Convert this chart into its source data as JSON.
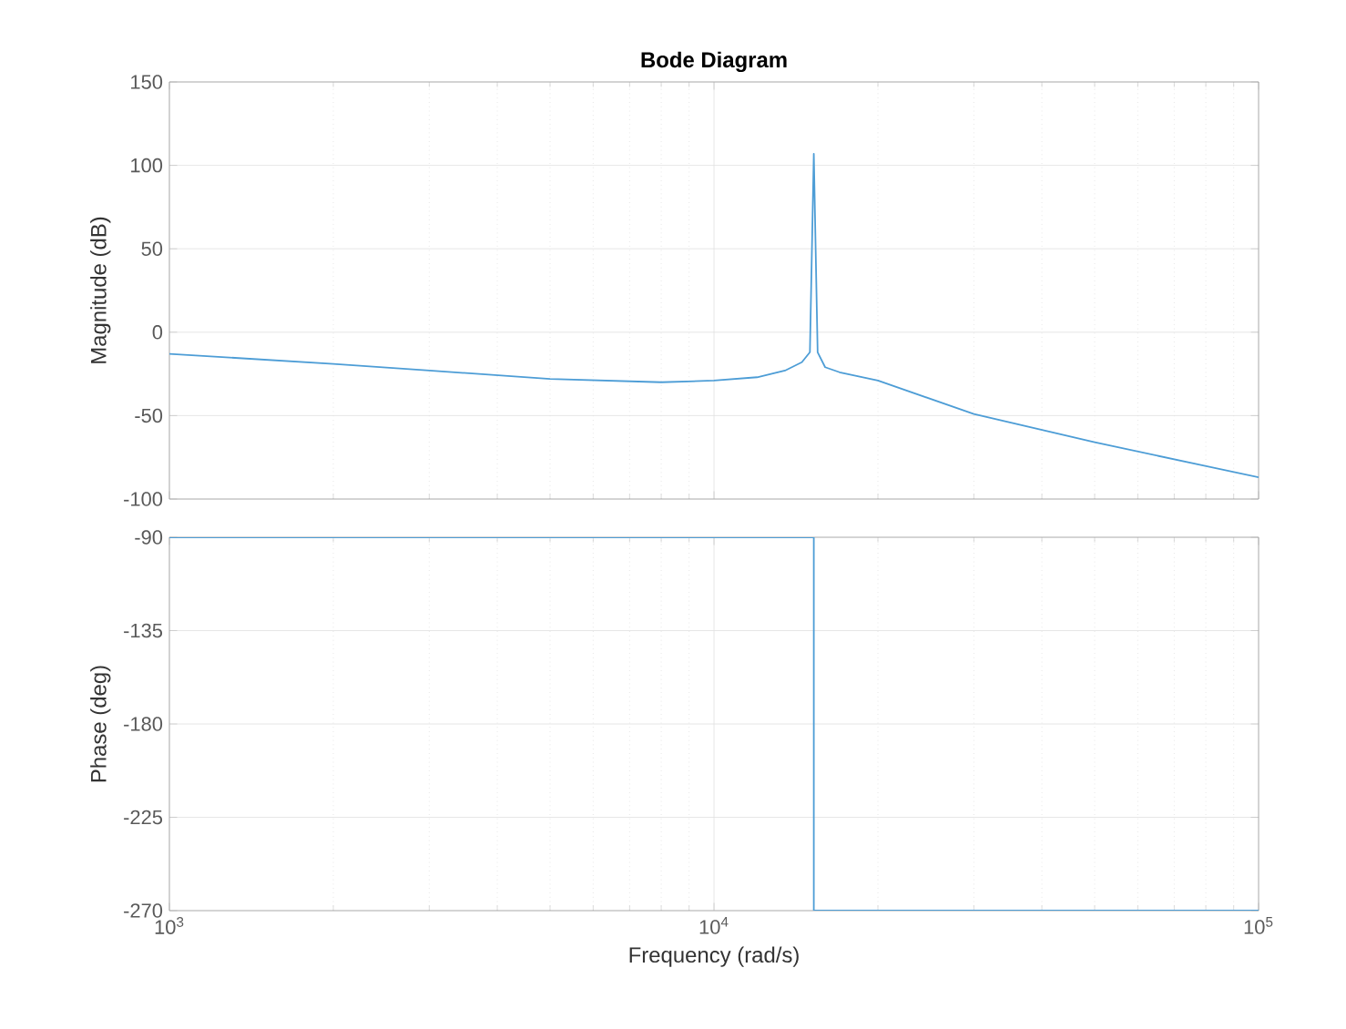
{
  "chart_data": [
    {
      "type": "line",
      "title": "Bode Diagram",
      "ylabel": "Magnitude (dB)",
      "log": "x",
      "grid": true,
      "tick_labels": "y",
      "color": "#4d9dd6",
      "x": [
        1000,
        2000,
        3000,
        5000,
        8000,
        10000,
        12000,
        13500,
        14500,
        15000,
        15250,
        15500,
        16000,
        17000,
        20000,
        30000,
        50000,
        100000
      ],
      "values": [
        -13,
        -19,
        -23,
        -28,
        -30,
        -29,
        -27,
        -23,
        -18,
        -12,
        107,
        -12,
        -21,
        -24,
        -29,
        -49,
        -66,
        -87
      ],
      "xlim": [
        1000,
        100000
      ],
      "ylim": [
        -100,
        150
      ],
      "xticks": [
        {
          "value": 1000,
          "label": null
        },
        {
          "value": 10000,
          "label": null
        },
        {
          "value": 100000,
          "label": null
        }
      ],
      "yticks": [
        -100,
        -50,
        0,
        50,
        100,
        150
      ]
    },
    {
      "type": "line",
      "xlabel": "Frequency  (rad/s)",
      "ylabel": "Phase (deg)",
      "log": "x",
      "grid": true,
      "color": "#4d9dd6",
      "x": [
        1000,
        15250,
        15250,
        100000
      ],
      "values": [
        -90,
        -90,
        -270,
        -270
      ],
      "xlim": [
        1000,
        100000
      ],
      "ylim": [
        -270,
        -90
      ],
      "xticks": [
        {
          "value": 1000,
          "label": "10$^{3}$"
        },
        {
          "value": 10000,
          "label": "10$^{4}$"
        },
        {
          "value": 100000,
          "label": "10$^{5}$"
        }
      ],
      "yticks": [
        -270,
        -225,
        -180,
        -135,
        -90
      ]
    }
  ]
}
